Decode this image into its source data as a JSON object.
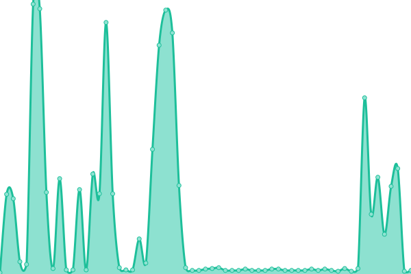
{
  "chart_data": {
    "type": "area",
    "title": "",
    "xlabel": "",
    "ylabel": "",
    "ylim": [
      0,
      100
    ],
    "grid": false,
    "legend": "none",
    "smooth": true,
    "colors": {
      "line": "#1dbf9a",
      "fill": "#8de1d0",
      "point_fill": "#8fe3d2",
      "point_stroke": "#1dbf9a"
    },
    "series": [
      {
        "values": [
          0.5,
          29.1,
          27.5,
          4.5,
          3.5,
          98.5,
          96.8,
          29.8,
          2,
          34.8,
          1.5,
          1.5,
          30.8,
          1.5,
          36.5,
          29.3,
          91.8,
          29.3,
          2.3,
          1.5,
          1.5,
          12.8,
          4,
          45.5,
          83.5,
          96.3,
          88,
          32.3,
          2.3,
          1.3,
          1.3,
          1.8,
          2,
          2.3,
          1.3,
          1.3,
          1.3,
          1.8,
          1.3,
          1.3,
          1.3,
          1.8,
          1.8,
          1.3,
          1.3,
          1.3,
          1.3,
          1.8,
          1.3,
          1.8,
          1.3,
          1,
          2,
          1,
          2,
          64.3,
          21.8,
          35.3,
          14.5,
          32,
          38.5,
          1,
          1.3
        ]
      }
    ]
  }
}
